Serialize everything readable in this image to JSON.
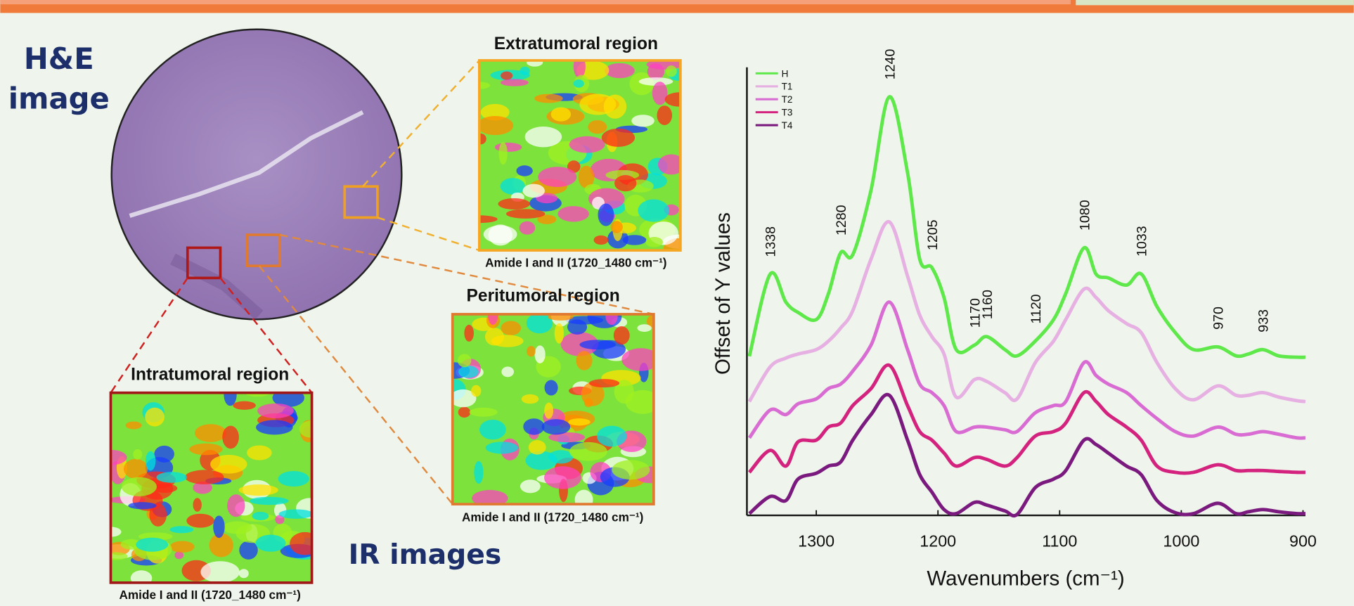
{
  "panels": {
    "he_label": [
      "H&E",
      "image"
    ],
    "ir_label": "IR images",
    "regions": [
      {
        "title": "Extratumoral region",
        "caption": "Amide I and II (1720_1480 cm⁻¹)"
      },
      {
        "title": "Peritumoral region",
        "caption": "Amide I and II (1720_1480 cm⁻¹)"
      },
      {
        "title": "Intratumoral region",
        "caption": "Amide I and II (1720_1480 cm⁻¹)"
      }
    ]
  },
  "chart_data": {
    "type": "line",
    "xlabel": "Wavenumbers (cm⁻¹)",
    "ylabel": "Offset of Y values",
    "x": [
      1355,
      1338,
      1325,
      1315,
      1300,
      1290,
      1280,
      1270,
      1255,
      1240,
      1225,
      1215,
      1205,
      1195,
      1185,
      1170,
      1160,
      1145,
      1135,
      1120,
      1105,
      1095,
      1080,
      1070,
      1060,
      1045,
      1033,
      1020,
      1005,
      990,
      970,
      955,
      945,
      933,
      920,
      905,
      898
    ],
    "xlim": [
      1357,
      898
    ],
    "xticks": [
      1300,
      1200,
      1100,
      1000,
      900
    ],
    "ylim": [
      0,
      100
    ],
    "legend": "top-left",
    "series": [
      {
        "name": "H",
        "color": "#5ee84a",
        "values": [
          35.5,
          53.8,
          47.6,
          45.3,
          43.7,
          49.5,
          58.6,
          58.2,
          72.6,
          93.4,
          76.5,
          57.2,
          55.3,
          48.6,
          37.0,
          38.0,
          39.9,
          37.0,
          35.6,
          38.9,
          43.7,
          49.5,
          59.7,
          53.8,
          53.0,
          51.4,
          53.9,
          46.6,
          40.8,
          37.0,
          37.6,
          35.6,
          36.0,
          37.0,
          35.6,
          35.3,
          35.3
        ]
      },
      {
        "name": "T1",
        "color": "#e6b0e2",
        "values": [
          25.4,
          33.1,
          35.1,
          36.0,
          37.0,
          38.9,
          41.8,
          45.7,
          57.2,
          65.5,
          53.4,
          44.7,
          39.9,
          36.0,
          26.4,
          30.3,
          29.9,
          27.4,
          26.0,
          34.1,
          38.9,
          43.7,
          50.5,
          48.6,
          45.7,
          42.8,
          40.8,
          34.1,
          28.3,
          25.8,
          28.9,
          26.8,
          26.8,
          27.4,
          26.4,
          25.6,
          25.4
        ]
      },
      {
        "name": "T2",
        "color": "#d86cd2",
        "values": [
          17.3,
          23.5,
          22.5,
          24.9,
          26.0,
          28.3,
          29.3,
          32.2,
          38.0,
          47.6,
          37.0,
          29.3,
          27.4,
          24.5,
          18.7,
          19.7,
          19.7,
          19.1,
          18.7,
          22.9,
          24.5,
          25.4,
          34.1,
          31.2,
          29.3,
          27.4,
          24.5,
          21.6,
          18.7,
          17.7,
          19.7,
          18.1,
          18.1,
          18.7,
          18.1,
          17.3,
          17.3
        ]
      },
      {
        "name": "T3",
        "color": "#d3237e",
        "values": [
          9.6,
          14.5,
          11.0,
          16.4,
          16.8,
          19.7,
          20.6,
          24.5,
          28.3,
          33.5,
          24.5,
          18.7,
          16.8,
          13.9,
          11.0,
          12.9,
          12.5,
          11.0,
          12.9,
          17.7,
          18.7,
          20.6,
          27.4,
          25.4,
          22.5,
          19.7,
          16.8,
          11.0,
          9.6,
          9.6,
          11.3,
          10.0,
          10.0,
          10.0,
          9.8,
          9.6,
          9.6
        ]
      },
      {
        "name": "T4",
        "color": "#7a1a7e",
        "values": [
          0.4,
          4.2,
          3.3,
          8.1,
          9.4,
          11.0,
          11.9,
          16.8,
          22.5,
          26.8,
          16.8,
          9.1,
          5.2,
          1.3,
          0.4,
          2.9,
          2.3,
          1.0,
          0.2,
          6.2,
          8.1,
          10.0,
          16.8,
          15.8,
          13.9,
          11.0,
          9.1,
          3.3,
          0.6,
          0.4,
          2.7,
          0.4,
          0.8,
          1.3,
          0.8,
          0.4,
          0.4
        ]
      }
    ],
    "annotations": [
      1338,
      1280,
      1240,
      1205,
      1170,
      1160,
      1120,
      1080,
      1033,
      970,
      933
    ]
  }
}
